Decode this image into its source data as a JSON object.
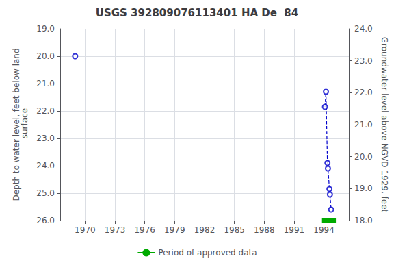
{
  "chart_data": {
    "type": "line",
    "title": "USGS 392809076113401 HA De  84",
    "ylabel": "Depth to water level, feet below land\n surface",
    "y2label": "Groundwater level above NGVD 1929, feet",
    "xlim": [
      1967.5,
      1996.5
    ],
    "xticks": [
      1970,
      1973,
      1976,
      1979,
      1982,
      1985,
      1988,
      1991,
      1994
    ],
    "ylim": [
      26.0,
      19.0
    ],
    "yticks": [
      {
        "value": 19.0,
        "label": "19.0"
      },
      {
        "value": 20.0,
        "label": "20.0"
      },
      {
        "value": 21.0,
        "label": "21.0"
      },
      {
        "value": 22.0,
        "label": "22.0"
      },
      {
        "value": 23.0,
        "label": "23.0"
      },
      {
        "value": 24.0,
        "label": "24.0"
      },
      {
        "value": 25.0,
        "label": "25.0"
      },
      {
        "value": 26.0,
        "label": "26.0"
      }
    ],
    "y2lim": [
      18.0,
      24.0
    ],
    "y2ticks": [
      {
        "value": 18.0,
        "label": "18.0"
      },
      {
        "value": 19.0,
        "label": "19.0"
      },
      {
        "value": 20.0,
        "label": "20.0"
      },
      {
        "value": 21.0,
        "label": "21.0"
      },
      {
        "value": 22.0,
        "label": "22.0"
      },
      {
        "value": 23.0,
        "label": "23.0"
      },
      {
        "value": 24.0,
        "label": "24.0"
      }
    ],
    "grid": true,
    "legend": "bottom",
    "series": [
      {
        "type": "line",
        "line_style": "dashed",
        "color": "#0000cc",
        "x": [
          1994.1,
          1994.2,
          1994.35,
          1994.4,
          1994.55,
          1994.6,
          1994.72
        ],
        "values": [
          21.85,
          21.3,
          23.9,
          24.1,
          24.85,
          25.05,
          25.6
        ]
      },
      {
        "type": "scatter",
        "marker": "circle_open",
        "color": "#0000cc",
        "x": [
          1969.0,
          1994.1,
          1994.2,
          1994.35,
          1994.4,
          1994.55,
          1994.6,
          1994.72
        ],
        "values": [
          20.0,
          21.85,
          21.3,
          23.9,
          24.1,
          24.85,
          25.05,
          25.6
        ]
      },
      {
        "type": "line",
        "name": "Period of approved data",
        "line_style": "solid",
        "color": "#00aa00",
        "x": [
          1993.8,
          1995.2
        ],
        "values": [
          26.0,
          26.0
        ]
      }
    ]
  }
}
